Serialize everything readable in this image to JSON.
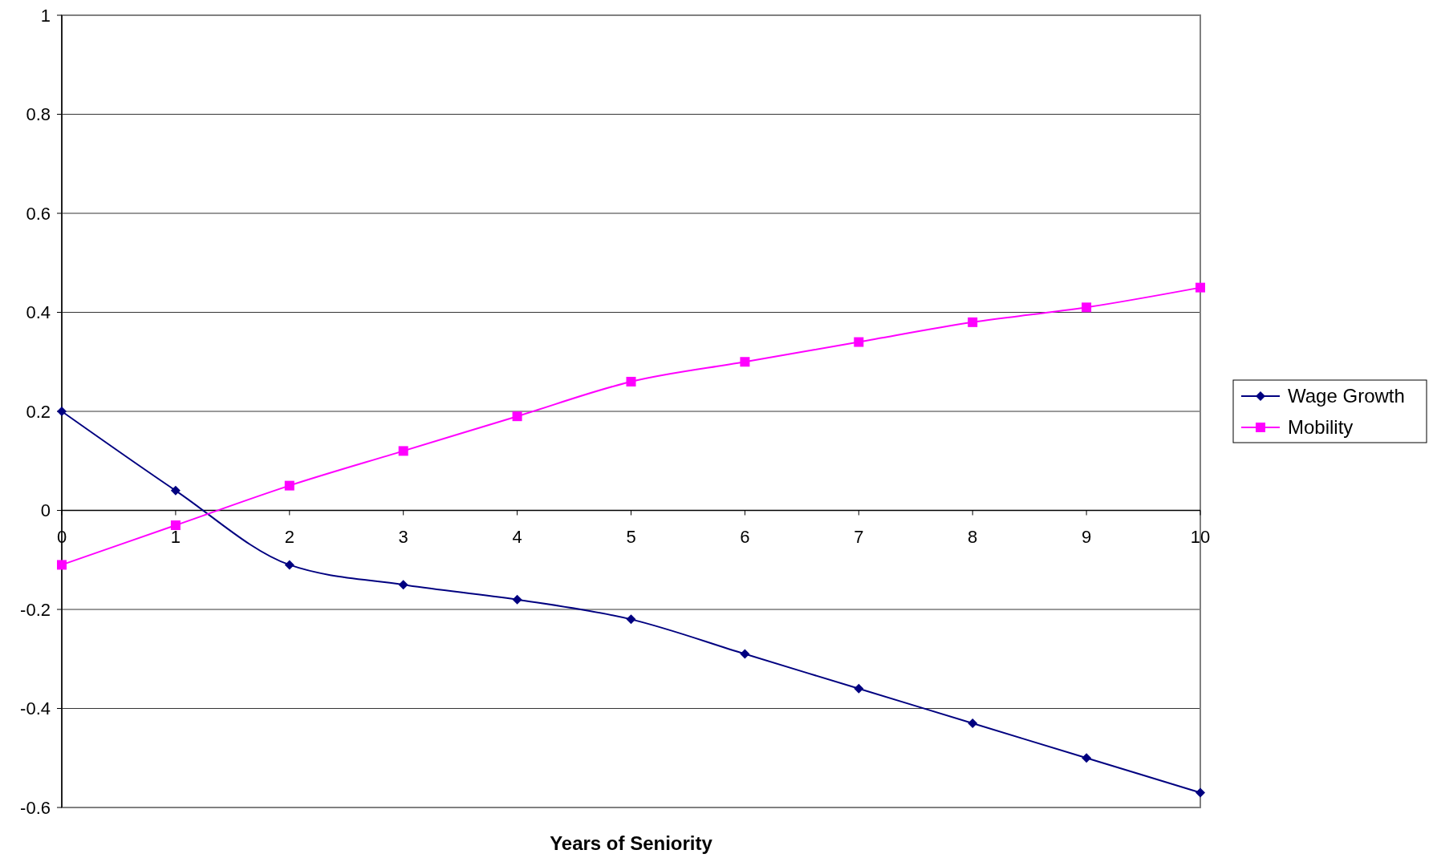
{
  "chart_data": {
    "type": "line",
    "xlabel": "Years of Seniority",
    "x": [
      0,
      1,
      2,
      3,
      4,
      5,
      6,
      7,
      8,
      9,
      10
    ],
    "xlim": [
      0,
      10
    ],
    "xticks": [
      0,
      1,
      2,
      3,
      4,
      5,
      6,
      7,
      8,
      9,
      10
    ],
    "ylim": [
      -0.6,
      1
    ],
    "yticks": [
      -0.6,
      -0.4,
      -0.2,
      0,
      0.2,
      0.4,
      0.6,
      0.8,
      1
    ],
    "grid": "y",
    "legend": "right",
    "line_style": "solid",
    "series": [
      {
        "name": "Wage Growth",
        "color": "#000080",
        "marker": "diamond",
        "values": [
          0.2,
          0.04,
          -0.11,
          -0.15,
          -0.18,
          -0.22,
          -0.29,
          -0.36,
          -0.43,
          -0.5,
          -0.57
        ]
      },
      {
        "name": "Mobility",
        "color": "#ff00ff",
        "marker": "square",
        "values": [
          -0.11,
          -0.03,
          0.05,
          0.12,
          0.19,
          0.26,
          0.3,
          0.34,
          0.38,
          0.41,
          0.45
        ]
      }
    ]
  }
}
